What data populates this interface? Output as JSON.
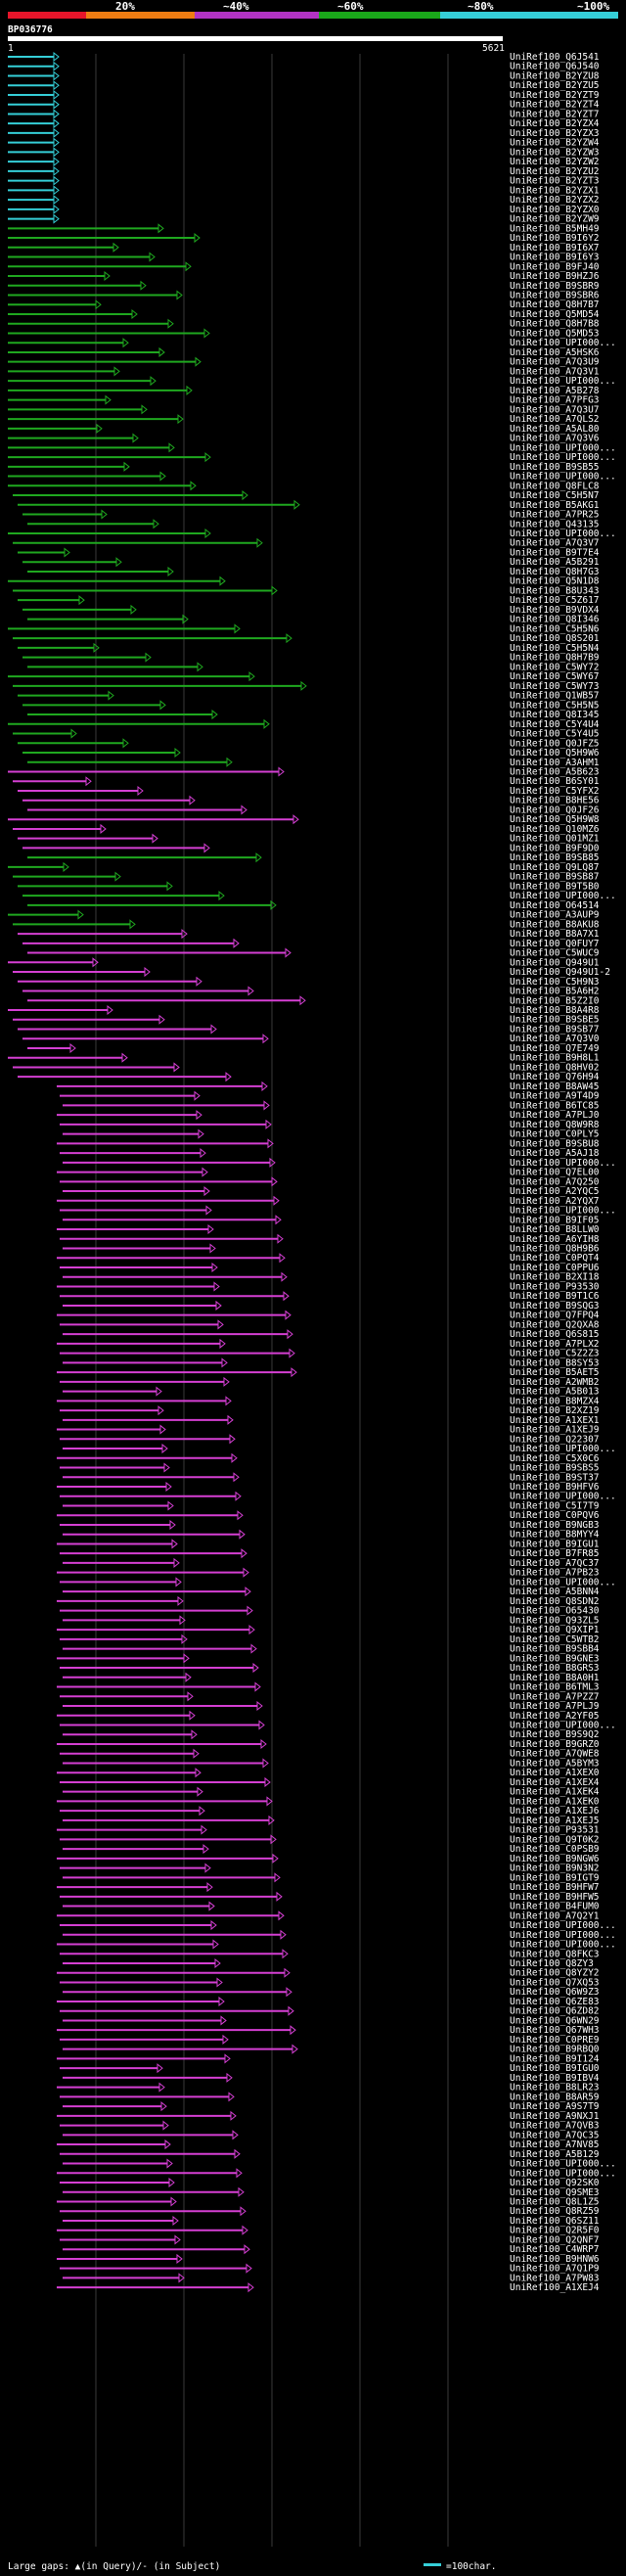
{
  "legend": {
    "segments": [
      {
        "label": "20%",
        "color": "#e6152a"
      },
      {
        "label": "~40%",
        "color": "#ef7d12"
      },
      {
        "label": "~60%",
        "color": "#b233c4"
      },
      {
        "label": "~80%",
        "color": "#1aa81a"
      },
      {
        "label": "~100%",
        "color": "#35cfd8"
      }
    ]
  },
  "query": {
    "id": "BP036776",
    "start": "1",
    "end": "5621"
  },
  "footer": {
    "gaps_text": "Large gaps: ▲(in Query)/- (in Subject)",
    "scale_text": "=100char."
  },
  "colors": {
    "pct20": "#e6152a",
    "pct40": "#ef7d12",
    "pct60": "#d53fd3",
    "pct80": "#1fa81f",
    "pct100": "#35cfd8"
  },
  "hits": [
    "UniRef100_Q6J541",
    "UniRef100_Q6J540",
    "UniRef100_B2YZU8",
    "UniRef100_B2YZU5",
    "UniRef100_B2YZT9",
    "UniRef100_B2YZT4",
    "UniRef100_B2YZT7",
    "UniRef100_B2YZX4",
    "UniRef100_B2YZX3",
    "UniRef100_B2YZW4",
    "UniRef100_B2YZW3",
    "UniRef100_B2YZW2",
    "UniRef100_B2YZU2",
    "UniRef100_B2YZT3",
    "UniRef100_B2YZX1",
    "UniRef100_B2YZX2",
    "UniRef100_B2YZX0",
    "UniRef100_B2YZW9",
    "UniRef100_B5MH49",
    "UniRef100_B9I6Y2",
    "UniRef100_B9I6X7",
    "UniRef100_B9I6Y3",
    "UniRef100_B9FJ40",
    "UniRef100_B9HZJ6",
    "UniRef100_B9SBR9",
    "UniRef100_B9SBR6",
    "UniRef100_Q8H7B7",
    "UniRef100_Q5MD54",
    "UniRef100_Q8H7B8",
    "UniRef100_Q5MD53",
    "UniRef100_UPI000...",
    "UniRef100_A5HSK6",
    "UniRef100_A7Q3U9",
    "UniRef100_A7Q3V1",
    "UniRef100_UPI000...",
    "UniRef100_A5B278",
    "UniRef100_A7PFG3",
    "UniRef100_A7Q3U7",
    "UniRef100_A7QLS2",
    "UniRef100_A5AL80",
    "UniRef100_A7Q3V6",
    "UniRef100_UPI000...",
    "UniRef100_UPI000...",
    "UniRef100_B9SB55",
    "UniRef100_UPI000...",
    "UniRef100_Q8FLC8",
    "UniRef100_C5H5N7",
    "UniRef100_B5AKG1",
    "UniRef100_A7PR25",
    "UniRef100_Q43135",
    "UniRef100_UPI000...",
    "UniRef100_A7Q3V7",
    "UniRef100_B9T7E4",
    "UniRef100_A5B291",
    "UniRef100_Q8H7G3",
    "UniRef100_Q5N1D8",
    "UniRef100_B8U343",
    "UniRef100_C5Z617",
    "UniRef100_B9VDX4",
    "UniRef100_Q8I346",
    "UniRef100_C5H5N6",
    "UniRef100_Q8S201",
    "UniRef100_C5H5N4",
    "UniRef100_Q8H7B9",
    "UniRef100_C5WY72",
    "UniRef100_C5WY67",
    "UniRef100_C5WY73",
    "UniRef100_Q1WB57",
    "UniRef100_C5H5N5",
    "UniRef100_Q8I345",
    "UniRef100_C5Y4U4",
    "UniRef100_C5Y4U5",
    "UniRef100_Q0JFZ5",
    "UniRef100_Q5H9W6",
    "UniRef100_A3AHM1",
    "UniRef100_A5B623",
    "UniRef100_B6SY01",
    "UniRef100_C5YFX2",
    "UniRef100_B8HE56",
    "UniRef100_Q0JF26",
    "UniRef100_Q5H9W8",
    "UniRef100_Q10MZ6",
    "UniRef100_Q01MZ1",
    "UniRef100_B9F9D0",
    "UniRef100_B9SB85",
    "UniRef100_Q9LQ87",
    "UniRef100_B9SB87",
    "UniRef100_B9T5B0",
    "UniRef100_UPI000...",
    "UniRef100_O64514",
    "UniRef100_A3AUP9",
    "UniRef100_B8AKU8",
    "UniRef100_B8A7X1",
    "UniRef100_Q0FUY7",
    "UniRef100_C5WUC9",
    "UniRef100_Q949U1",
    "UniRef100_Q949U1-2",
    "UniRef100_C5H9N3",
    "UniRef100_B5A6H2",
    "UniRef100_B5Z2I0",
    "UniRef100_B8A4R8",
    "UniRef100_B9SBE5",
    "UniRef100_B9SB77",
    "UniRef100_A7Q3V0",
    "UniRef100_Q7E749",
    "UniRef100_B9H8L1",
    "UniRef100_Q8HV02",
    "UniRef100_Q76H94",
    "UniRef100_B8AW45",
    "UniRef100_A9T4D9",
    "UniRef100_B6TC85",
    "UniRef100_A7PLJ0",
    "UniRef100_Q8W9R8",
    "UniRef100_C0PLY5",
    "UniRef100_B9SBU8",
    "UniRef100_A5AJ18",
    "UniRef100_UPI000...",
    "UniRef100_Q7EL00",
    "UniRef100_A7Q250",
    "UniRef100_A2YQC5",
    "UniRef100_A2YQX7",
    "UniRef100_UPI000...",
    "UniRef100_B9IF05",
    "UniRef100_B8LLW0",
    "UniRef100_A6YIH8",
    "UniRef100_Q8H9B6",
    "UniRef100_C0PQT4",
    "UniRef100_C0PPU6",
    "UniRef100_B2XI18",
    "UniRef100_P93530",
    "UniRef100_B9T1C6",
    "UniRef100_B9SQG3",
    "UniRef100_Q7FPQ4",
    "UniRef100_Q2QXA8",
    "UniRef100_Q6S815",
    "UniRef100_A7PLX2",
    "UniRef100_C5Z2Z3",
    "UniRef100_B8SY53",
    "UniRef100_B5AET5",
    "UniRef100_A2WMB2",
    "UniRef100_A5B013",
    "UniRef100_B8MZX4",
    "UniRef100_B2XZ19",
    "UniRef100_A1XEX1",
    "UniRef100_A1XEJ9",
    "UniRef100_Q22307",
    "UniRef100_UPI000...",
    "UniRef100_C5X0C6",
    "UniRef100_B9SBS5",
    "UniRef100_B9ST37",
    "UniRef100_B9HFV6",
    "UniRef100_UPI000...",
    "UniRef100_C5I7T9",
    "UniRef100_C0PQV6",
    "UniRef100_B9NGB3",
    "UniRef100_B8MYY4",
    "UniRef100_B9IGU1",
    "UniRef100_B7FR85",
    "UniRef100_A7QC37",
    "UniRef100_A7PB23",
    "UniRef100_UPI000...",
    "UniRef100_A5BNN4",
    "UniRef100_Q8SDN2",
    "UniRef100_O65430",
    "UniRef100_Q93ZL5",
    "UniRef100_Q9XIP1",
    "UniRef100_C5WTB2",
    "UniRef100_B9SBB4",
    "UniRef100_B9GNE3",
    "UniRef100_B8GRS3",
    "UniRef100_B8A0H1",
    "UniRef100_B6TML3",
    "UniRef100_A7PZZ7",
    "UniRef100_A7PLJ9",
    "UniRef100_A2YF05",
    "UniRef100_UPI000...",
    "UniRef100_B9S9Q2",
    "UniRef100_B9GRZ0",
    "UniRef100_A7QWE8",
    "UniRef100_A5BYM3",
    "UniRef100_A1XEX0",
    "UniRef100_A1XEX4",
    "UniRef100_A1XEK4",
    "UniRef100_A1XEK0",
    "UniRef100_A1XEJ6",
    "UniRef100_A1XEJ5",
    "UniRef100_P93531",
    "UniRef100_Q9T0K2",
    "UniRef100_C0PSB9",
    "UniRef100_B9NGW6",
    "UniRef100_B9N3N2",
    "UniRef100_B9IGT9",
    "UniRef100_B9HFW7",
    "UniRef100_B9HFW5",
    "UniRef100_B4FUM0",
    "UniRef100_A7Q2Y1",
    "UniRef100_UPI000...",
    "UniRef100_UPI000...",
    "UniRef100_UPI000...",
    "UniRef100_Q8FKC3",
    "UniRef100_Q8ZY3",
    "UniRef100_Q8YZY2",
    "UniRef100_Q7XQ53",
    "UniRef100_Q6W9Z3",
    "UniRef100_Q6ZE83",
    "UniRef100_Q6ZD82",
    "UniRef100_Q6WN29",
    "UniRef100_Q67WH3",
    "UniRef100_C0PRE9",
    "UniRef100_B9RBQ0",
    "UniRef100_B9I124",
    "UniRef100_B9IGU0",
    "UniRef100_B9IBV4",
    "UniRef100_B8LR23",
    "UniRef100_B8AR59",
    "UniRef100_A9S7T9",
    "UniRef100_A9NXJ1",
    "UniRef100_A7QVB3",
    "UniRef100_A7QC35",
    "UniRef100_A7NV85",
    "UniRef100_A5B129",
    "UniRef100_UPI000...",
    "UniRef100_UPI000...",
    "UniRef100_Q92SK0",
    "UniRef100_Q9SME3",
    "UniRef100_Q8L1Z5",
    "UniRef100_Q8RZ59",
    "UniRef100_Q6SZ11",
    "UniRef100_Q2R5F0",
    "UniRef100_Q2QNF7",
    "UniRef100_C4WRP7",
    "UniRef100_B9HNW6",
    "UniRef100_A7Q1P9",
    "UniRef100_A7PW83",
    "UniRef100_A1XEJ4"
  ]
}
